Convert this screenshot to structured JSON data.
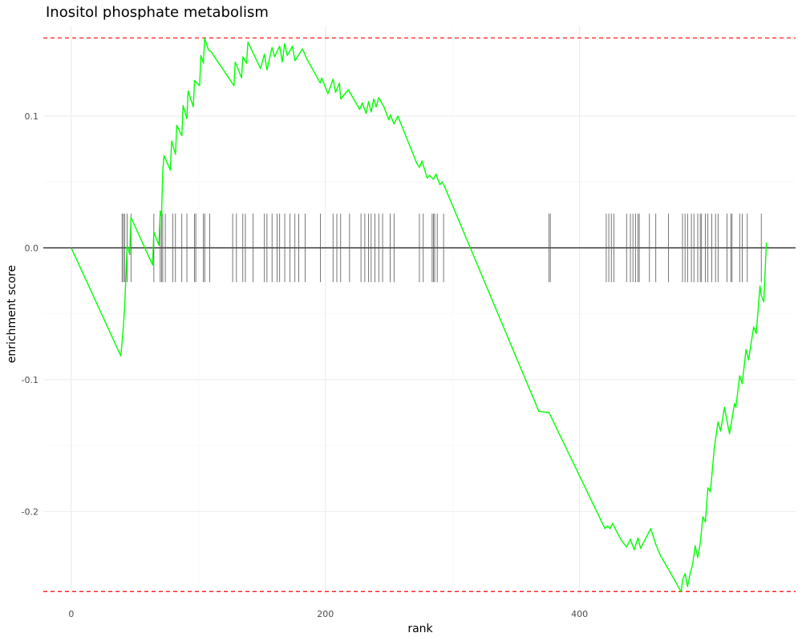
{
  "chart_data": {
    "type": "line",
    "title": "Inositol phosphate metabolism",
    "xlabel": "rank",
    "ylabel": "enrichment score",
    "xlim": [
      -22,
      570
    ],
    "ylim": [
      -0.263,
      0.168
    ],
    "grid": true,
    "x_ticks": [
      0,
      200,
      400
    ],
    "x_tick_labels": [
      "0",
      "200",
      "400"
    ],
    "y_ticks": [
      -0.2,
      -0.1,
      0.0,
      0.1
    ],
    "y_tick_labels": [
      "-0.2",
      "-0.1",
      "0.0",
      "0.1"
    ],
    "reference_lines": {
      "zero": 0.0,
      "max_es": 0.1593,
      "min_es": -0.2607,
      "zero_color": "#000000",
      "extreme_color": "#ff0000"
    },
    "series": [
      {
        "color": "#00ff00",
        "x": [
          0,
          39,
          41,
          42,
          44,
          46,
          47,
          64,
          65,
          69,
          70,
          71,
          72,
          73,
          78,
          79,
          82,
          83,
          87,
          88,
          91,
          92,
          96,
          97,
          101,
          102,
          104,
          105,
          108,
          110,
          128,
          129,
          134,
          135,
          138,
          139,
          142,
          149,
          152,
          154,
          158,
          160,
          164,
          166,
          168,
          170,
          174,
          176,
          182,
          185,
          196,
          197,
          202,
          206,
          208,
          211,
          212,
          218,
          227,
          229,
          232,
          234,
          236,
          238,
          240,
          242,
          246,
          250,
          251,
          254,
          257,
          272,
          274,
          276,
          280,
          282,
          285,
          287,
          290,
          292,
          294,
          368,
          376,
          420,
          422,
          424,
          426,
          428,
          433,
          437,
          440,
          443,
          446,
          448,
          456,
          460,
          464,
          470,
          480,
          481,
          483,
          485,
          487,
          489,
          491,
          493,
          495,
          497,
          499,
          501,
          503,
          506,
          509,
          511,
          514,
          516,
          518,
          522,
          523,
          526,
          528,
          531,
          533,
          537,
          539,
          542,
          543,
          545,
          547
        ],
        "values": [
          0.0,
          -0.082,
          -0.06,
          -0.045,
          0.002,
          -0.005,
          0.023,
          -0.013,
          0.012,
          0.002,
          0.028,
          0.024,
          0.058,
          0.07,
          0.059,
          0.081,
          0.071,
          0.093,
          0.085,
          0.108,
          0.098,
          0.119,
          0.107,
          0.127,
          0.123,
          0.146,
          0.14,
          0.159,
          0.15,
          0.149,
          0.123,
          0.141,
          0.129,
          0.145,
          0.14,
          0.156,
          0.15,
          0.136,
          0.147,
          0.135,
          0.152,
          0.145,
          0.153,
          0.141,
          0.155,
          0.146,
          0.153,
          0.142,
          0.151,
          0.144,
          0.125,
          0.129,
          0.117,
          0.128,
          0.118,
          0.125,
          0.113,
          0.12,
          0.105,
          0.11,
          0.102,
          0.111,
          0.103,
          0.113,
          0.107,
          0.114,
          0.107,
          0.097,
          0.101,
          0.094,
          0.1,
          0.064,
          0.061,
          0.066,
          0.053,
          0.055,
          0.052,
          0.056,
          0.048,
          0.05,
          0.046,
          -0.124,
          -0.125,
          -0.213,
          -0.211,
          -0.213,
          -0.209,
          -0.213,
          -0.222,
          -0.227,
          -0.221,
          -0.229,
          -0.22,
          -0.228,
          -0.213,
          -0.225,
          -0.234,
          -0.244,
          -0.261,
          -0.252,
          -0.247,
          -0.257,
          -0.247,
          -0.24,
          -0.226,
          -0.235,
          -0.224,
          -0.204,
          -0.208,
          -0.182,
          -0.185,
          -0.152,
          -0.132,
          -0.139,
          -0.121,
          -0.131,
          -0.141,
          -0.118,
          -0.121,
          -0.097,
          -0.103,
          -0.077,
          -0.085,
          -0.06,
          -0.065,
          -0.029,
          -0.036,
          -0.041,
          0.004
        ]
      }
    ],
    "hit_ranks": [
      40,
      41,
      42,
      44,
      47,
      65,
      70,
      71,
      72,
      74,
      80,
      82,
      87,
      91,
      97,
      98,
      104,
      105,
      109,
      127,
      130,
      135,
      137,
      143,
      152,
      154,
      158,
      162,
      164,
      168,
      172,
      176,
      179,
      184,
      196,
      206,
      209,
      212,
      219,
      228,
      231,
      234,
      236,
      239,
      242,
      245,
      251,
      254,
      274,
      277,
      284,
      285,
      286,
      288,
      293,
      376,
      377,
      421,
      423,
      425,
      427,
      437,
      440,
      442,
      444,
      446,
      447,
      455,
      460,
      470,
      481,
      483,
      485,
      488,
      490,
      493,
      495,
      496,
      499,
      501,
      504,
      507,
      509,
      516,
      519,
      520,
      526,
      528,
      532,
      543
    ]
  }
}
